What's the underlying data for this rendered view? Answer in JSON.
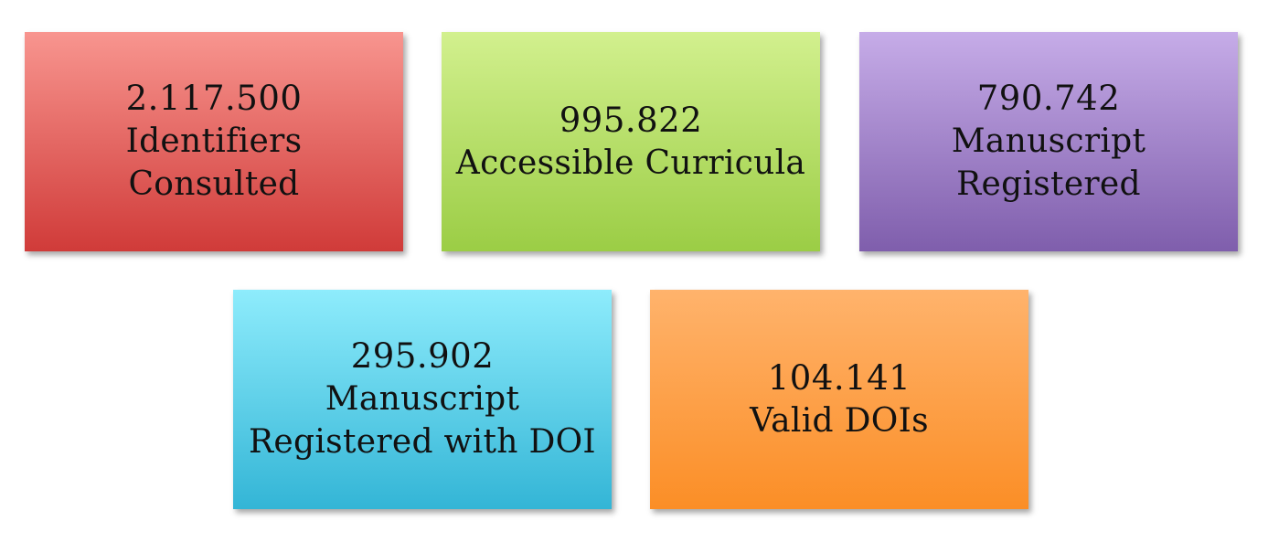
{
  "cards": [
    {
      "value": "2.117.500",
      "label_line1": "Identifiers",
      "label_line2": "Consulted"
    },
    {
      "value": "995.822",
      "label_line1": "Accessible Curricula",
      "label_line2": ""
    },
    {
      "value": "790.742",
      "label_line1": "Manuscript",
      "label_line2": "Registered"
    },
    {
      "value": "295.902",
      "label_line1": "Manuscript",
      "label_line2": "Registered with DOI"
    },
    {
      "value": "104.141",
      "label_line1": "Valid DOIs",
      "label_line2": ""
    }
  ],
  "colors": {
    "red": "#e45a56",
    "green": "#b5de66",
    "purple": "#a184cb",
    "cyan": "#5fd0ea",
    "orange": "#fda04a"
  }
}
